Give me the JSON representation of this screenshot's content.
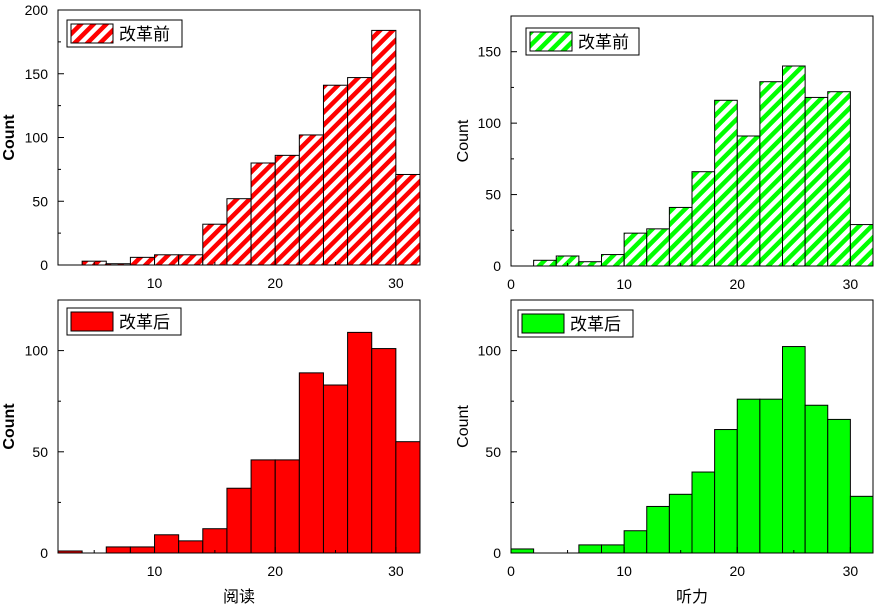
{
  "chart_data": [
    {
      "id": "reading-before",
      "type": "bar",
      "subject": "阅读",
      "legend": "改革前",
      "color": "#ff0000",
      "pattern": "hatch",
      "ylabel": "Count",
      "xlabel": "",
      "xlim": [
        2,
        32
      ],
      "ylim": [
        0,
        200
      ],
      "xticks": [
        10,
        20,
        30
      ],
      "yticks": [
        0,
        50,
        100,
        150,
        200
      ],
      "bin_width": 2,
      "bins": [
        {
          "start": 4,
          "value": 3
        },
        {
          "start": 6,
          "value": 1
        },
        {
          "start": 8,
          "value": 6
        },
        {
          "start": 10,
          "value": 8
        },
        {
          "start": 12,
          "value": 8
        },
        {
          "start": 14,
          "value": 32
        },
        {
          "start": 16,
          "value": 52
        },
        {
          "start": 18,
          "value": 80
        },
        {
          "start": 20,
          "value": 86
        },
        {
          "start": 22,
          "value": 102
        },
        {
          "start": 24,
          "value": 141
        },
        {
          "start": 26,
          "value": 147
        },
        {
          "start": 28,
          "value": 184
        },
        {
          "start": 30,
          "value": 71
        }
      ]
    },
    {
      "id": "listening-before",
      "type": "bar",
      "subject": "听力",
      "legend": "改革前",
      "color": "#00ff00",
      "pattern": "hatch",
      "ylabel": "Count",
      "xlabel": "",
      "xlim": [
        0,
        32
      ],
      "ylim": [
        0,
        175
      ],
      "xticks": [
        0,
        10,
        20,
        30
      ],
      "yticks": [
        0,
        50,
        100,
        150
      ],
      "bin_width": 2,
      "bins": [
        {
          "start": 2,
          "value": 4
        },
        {
          "start": 4,
          "value": 7
        },
        {
          "start": 6,
          "value": 3
        },
        {
          "start": 8,
          "value": 8
        },
        {
          "start": 10,
          "value": 23
        },
        {
          "start": 12,
          "value": 26
        },
        {
          "start": 14,
          "value": 41
        },
        {
          "start": 16,
          "value": 66
        },
        {
          "start": 18,
          "value": 116
        },
        {
          "start": 20,
          "value": 91
        },
        {
          "start": 22,
          "value": 129
        },
        {
          "start": 24,
          "value": 140
        },
        {
          "start": 26,
          "value": 118
        },
        {
          "start": 28,
          "value": 122
        },
        {
          "start": 30,
          "value": 29
        }
      ]
    },
    {
      "id": "reading-after",
      "type": "bar",
      "subject": "阅读",
      "legend": "改革后",
      "color": "#ff0000",
      "pattern": "solid",
      "ylabel": "Count",
      "xlabel": "阅读",
      "xlim": [
        2,
        32
      ],
      "ylim": [
        0,
        125
      ],
      "xticks": [
        10,
        20,
        30
      ],
      "yticks": [
        0,
        50,
        100
      ],
      "bin_width": 2,
      "bins": [
        {
          "start": 2,
          "value": 1
        },
        {
          "start": 4,
          "value": 0
        },
        {
          "start": 6,
          "value": 3
        },
        {
          "start": 8,
          "value": 3
        },
        {
          "start": 10,
          "value": 9
        },
        {
          "start": 12,
          "value": 6
        },
        {
          "start": 14,
          "value": 12
        },
        {
          "start": 16,
          "value": 32
        },
        {
          "start": 18,
          "value": 46
        },
        {
          "start": 20,
          "value": 46
        },
        {
          "start": 22,
          "value": 89
        },
        {
          "start": 24,
          "value": 83
        },
        {
          "start": 26,
          "value": 109
        },
        {
          "start": 28,
          "value": 101
        },
        {
          "start": 30,
          "value": 55
        }
      ]
    },
    {
      "id": "listening-after",
      "type": "bar",
      "subject": "听力",
      "legend": "改革后",
      "color": "#00ff00",
      "pattern": "solid",
      "ylabel": "Count",
      "xlabel": "听力",
      "xlim": [
        0,
        32
      ],
      "ylim": [
        0,
        125
      ],
      "xticks": [
        0,
        10,
        20,
        30
      ],
      "yticks": [
        0,
        50,
        100
      ],
      "bin_width": 2,
      "bins": [
        {
          "start": 0,
          "value": 2
        },
        {
          "start": 2,
          "value": 0
        },
        {
          "start": 4,
          "value": 0
        },
        {
          "start": 6,
          "value": 4
        },
        {
          "start": 8,
          "value": 4
        },
        {
          "start": 10,
          "value": 11
        },
        {
          "start": 12,
          "value": 23
        },
        {
          "start": 14,
          "value": 29
        },
        {
          "start": 16,
          "value": 40
        },
        {
          "start": 18,
          "value": 61
        },
        {
          "start": 20,
          "value": 76
        },
        {
          "start": 22,
          "value": 76
        },
        {
          "start": 24,
          "value": 102
        },
        {
          "start": 26,
          "value": 73
        },
        {
          "start": 28,
          "value": 66
        },
        {
          "start": 30,
          "value": 28
        }
      ]
    }
  ]
}
